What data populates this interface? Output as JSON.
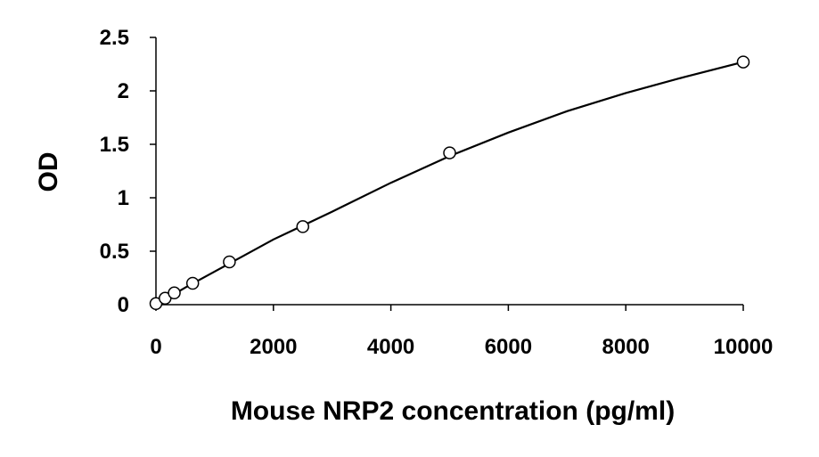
{
  "chart_data": {
    "type": "scatter",
    "title": "",
    "xlabel": "Mouse NRP2 concentration (pg/ml)",
    "ylabel": "OD",
    "xlim": [
      0,
      10000
    ],
    "ylim": [
      0,
      2.5
    ],
    "x_ticks": [
      0,
      2000,
      4000,
      6000,
      8000,
      10000
    ],
    "x_tick_labels": [
      "0",
      "2000",
      "4000",
      "6000",
      "8000",
      "10000"
    ],
    "y_ticks": [
      0,
      0.5,
      1,
      1.5,
      2,
      2.5
    ],
    "y_tick_labels": [
      "0",
      "0.5",
      "1",
      "1.5",
      "2",
      "2.5"
    ],
    "grid": false,
    "legend": "none",
    "series": [
      {
        "marker": "open-circle",
        "x": [
          0,
          156,
          312,
          625,
          1250,
          2500,
          5000,
          10000
        ],
        "y": [
          0.01,
          0.06,
          0.11,
          0.2,
          0.4,
          0.73,
          1.42,
          2.27
        ]
      }
    ],
    "trendline": {
      "type": "polynomial-fit",
      "x": [
        0,
        250,
        500,
        1000,
        1500,
        2000,
        2500,
        3000,
        4000,
        5000,
        6000,
        7000,
        8000,
        9000,
        10000
      ],
      "y": [
        0.0,
        0.08,
        0.16,
        0.31,
        0.46,
        0.61,
        0.74,
        0.87,
        1.14,
        1.39,
        1.61,
        1.81,
        1.98,
        2.13,
        2.27
      ]
    },
    "colors": {
      "axis": "#000000",
      "marker_stroke": "#000000",
      "marker_fill": "#ffffff",
      "trendline": "#000000"
    }
  }
}
